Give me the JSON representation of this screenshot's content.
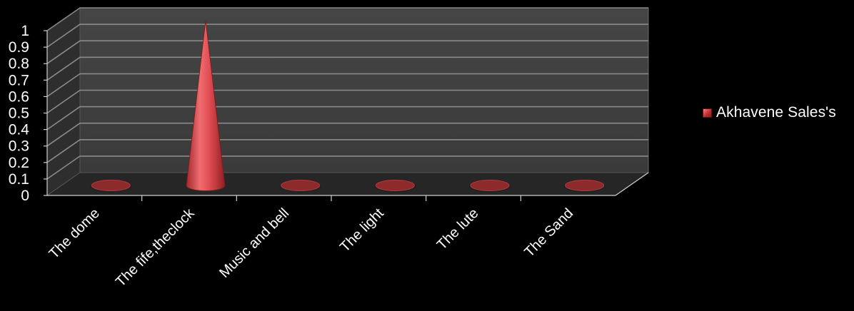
{
  "chart_data": {
    "type": "bar",
    "title": "",
    "xlabel": "",
    "ylabel": "",
    "categories": [
      "The dome",
      "The fife,theclock",
      "Music and bell",
      "The light",
      "The lute",
      "The Sand"
    ],
    "series": [
      {
        "name": "Akhavene Sales's",
        "values": [
          0,
          1,
          0,
          0,
          0,
          0
        ]
      }
    ],
    "ylim": [
      0,
      1
    ],
    "yticks": [
      "0",
      "0.1",
      "0.2",
      "0.3",
      "0.4",
      "0.5",
      "0.6",
      "0.7",
      "0.8",
      "0.9",
      "1"
    ],
    "grid": true,
    "legend_position": "right",
    "colors": {
      "background": "#000000",
      "wall": "#3d3d3d",
      "floor": "#262626",
      "gridline": "#8a8a8a",
      "series": "#d9454a",
      "text": "#ffffff"
    }
  }
}
